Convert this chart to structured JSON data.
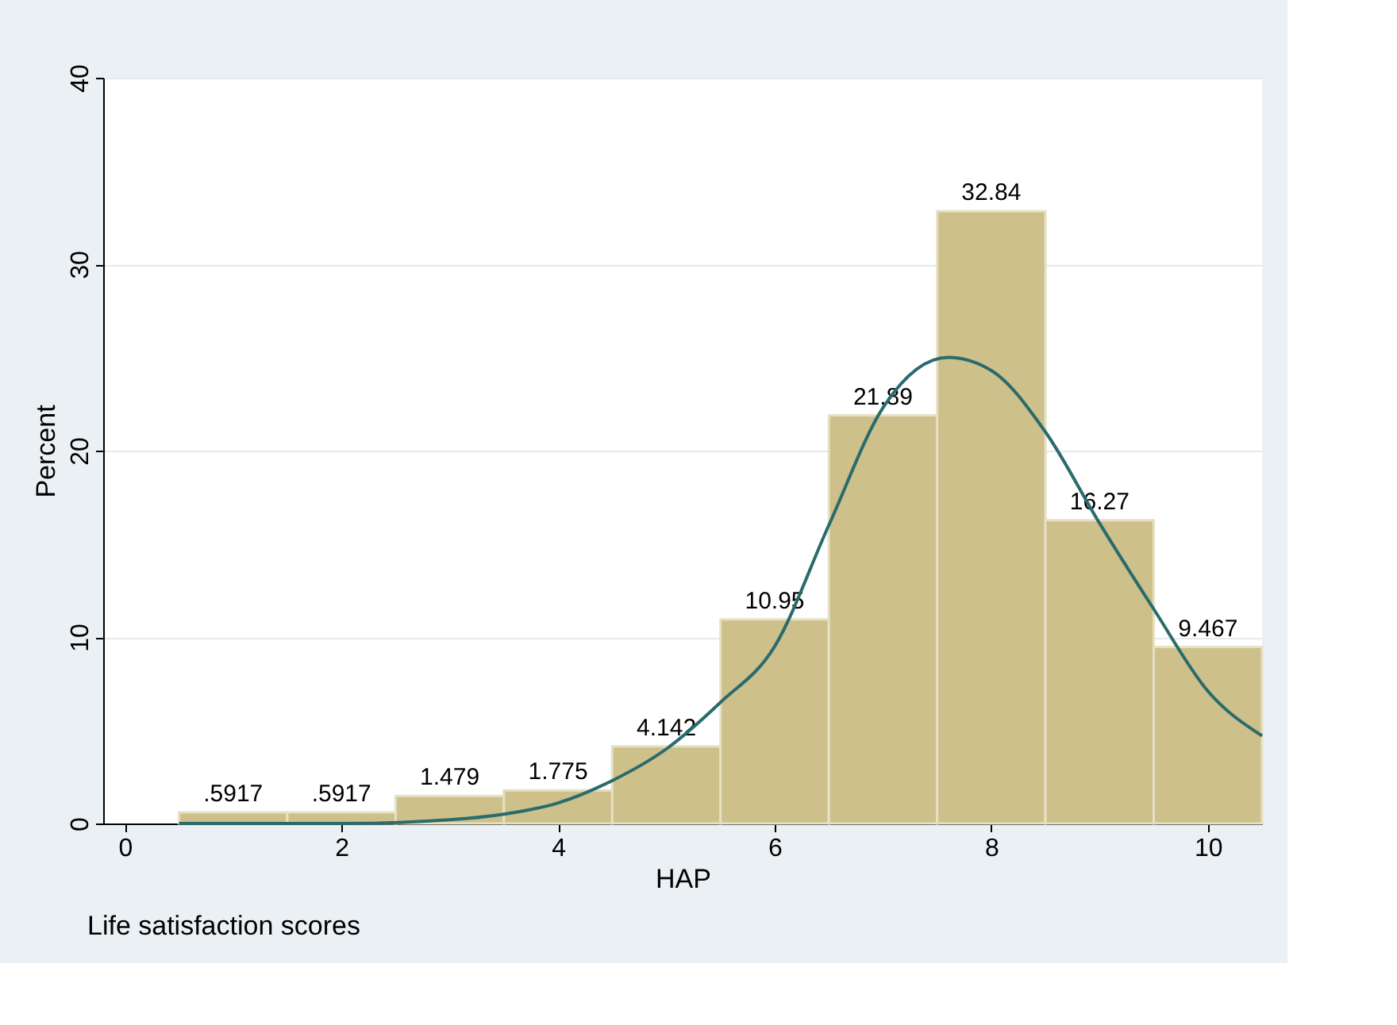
{
  "chart_data": {
    "type": "histogram",
    "xlabel": "HAP",
    "ylabel": "Percent",
    "annotations": [
      "Life satisfaction scores"
    ],
    "bins": [
      0.5,
      1.5,
      2.5,
      3.5,
      4.5,
      5.5,
      6.5,
      7.5,
      8.5,
      9.5,
      10.5
    ],
    "series": [
      {
        "color": "#cdc08a",
        "values": [
          0.5917,
          0.5917,
          1.479,
          1.775,
          4.142,
          10.95,
          21.89,
          32.84,
          16.27,
          9.467
        ],
        "value_labels": [
          ".5917",
          ".5917",
          "1.479",
          "1.775",
          "4.142",
          "10.95",
          "21.89",
          "32.84",
          "16.27",
          "9.467"
        ]
      },
      {
        "type": "line",
        "color": "#2a6b6b",
        "x": [
          0.5,
          1,
          2,
          3,
          3.5,
          4,
          4.5,
          5,
          5.5,
          6,
          6.5,
          7,
          7.6,
          8,
          8.5,
          9,
          9.5,
          10,
          10.5
        ],
        "values": [
          0,
          0,
          0,
          0.2,
          0.5,
          1.1,
          2.3,
          4,
          6.5,
          9.5,
          16,
          22.3,
          25,
          24.3,
          21,
          16.1,
          11.5,
          7.1,
          4.7
        ]
      }
    ],
    "xlim": [
      -0.2,
      10.5
    ],
    "xticks": [
      0,
      2,
      4,
      6,
      8,
      10
    ],
    "ylim": [
      0,
      40
    ],
    "yticks": [
      0,
      10,
      20,
      30,
      40
    ],
    "grid": "y"
  }
}
